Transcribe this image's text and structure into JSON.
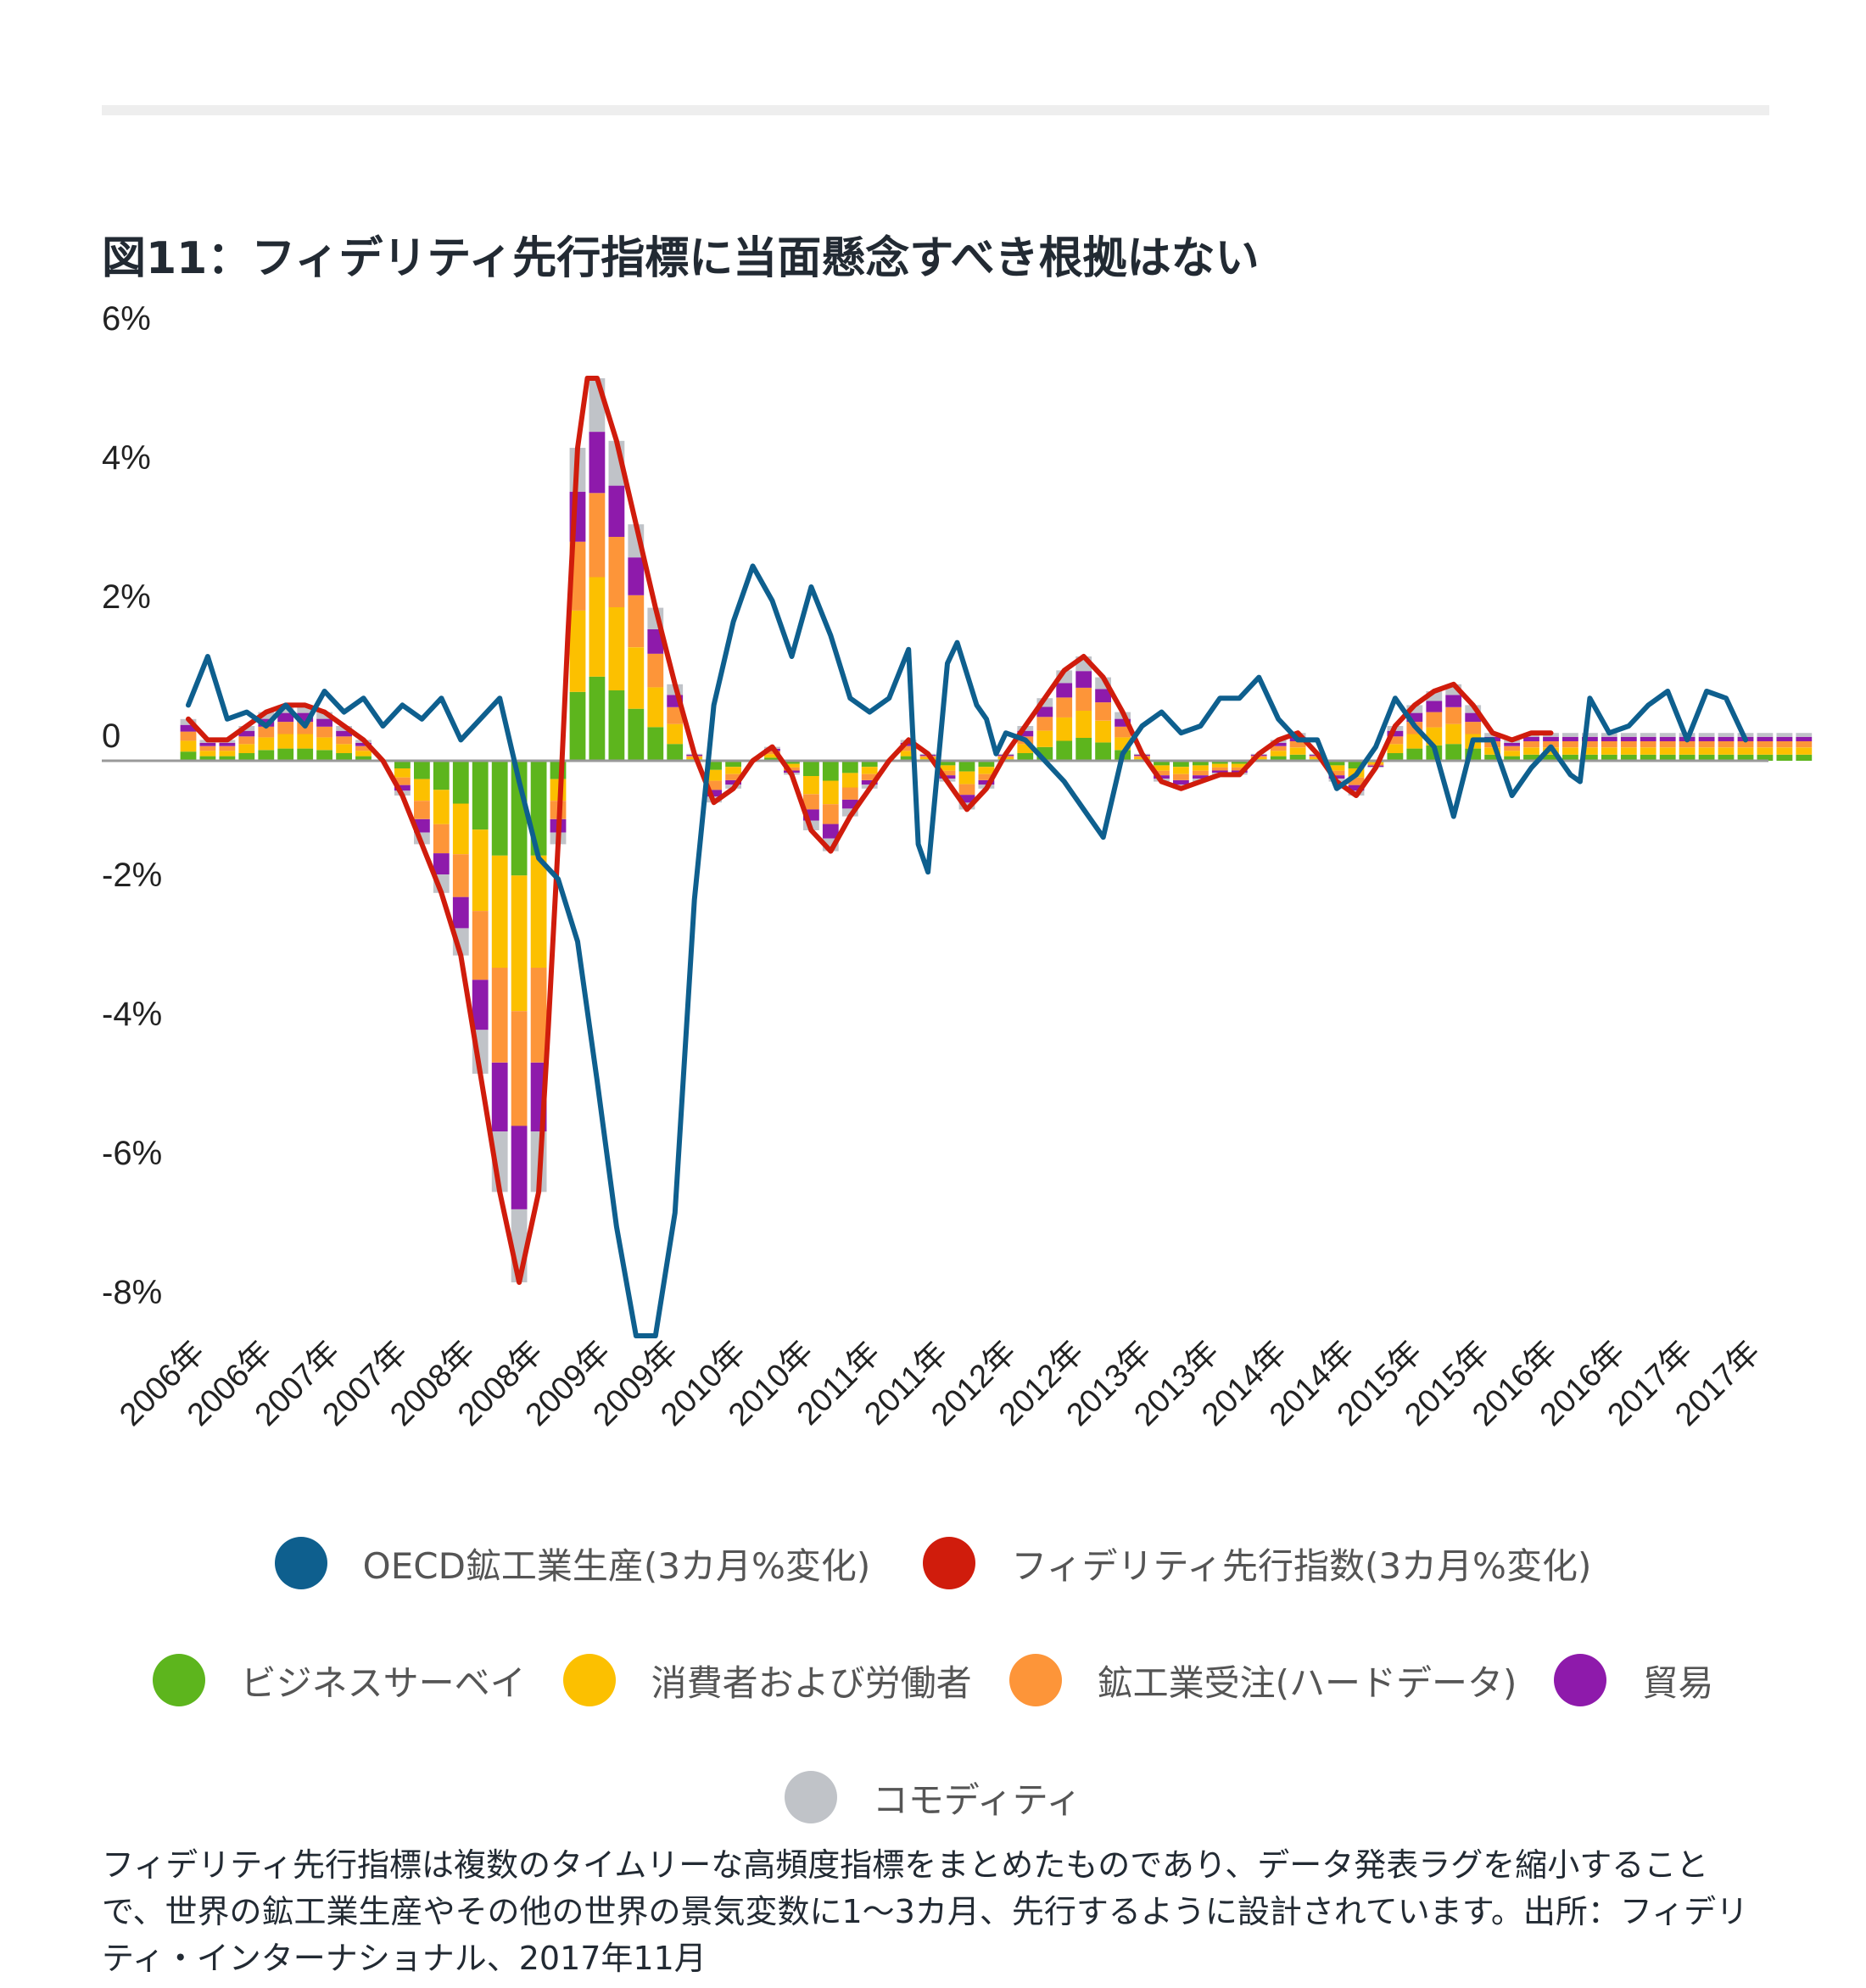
{
  "title": "図11：フィデリティ先行指標に当面懸念すべき根拠はない",
  "caption": "フィデリティ先行指標は複数のタイムリーな高頻度指標をまとめたものであり、データ発表ラグを縮小することで、世界の鉱工業生産やその他の世界の景気変数に1〜3カ月、先行するように設計されています。出所：フィデリティ・インターナショナル、2017年11月",
  "chart_data": {
    "type": "bar",
    "stacked": true,
    "title": "図11：フィデリティ先行指標に当面懸念すべき根拠はない",
    "y_ticks": [
      "6%",
      "4%",
      "2%",
      "0",
      "-2%",
      "-4%",
      "-6%",
      "-8%"
    ],
    "y_tick_values": [
      6,
      4,
      2,
      0,
      -2,
      -4,
      -6,
      -8
    ],
    "ylim": [
      -8.8,
      6.2
    ],
    "x_start": "2006-01",
    "x_end": "2017-10",
    "x_tick_labels": [
      "2006年",
      "2006年",
      "2007年",
      "2007年",
      "2008年",
      "2008年",
      "2009年",
      "2009年",
      "2010年",
      "2010年",
      "2011年",
      "2011年",
      "2012年",
      "2012年",
      "2013年",
      "2013年",
      "2014年",
      "2014年",
      "2015年",
      "2015年",
      "2016年",
      "2016年",
      "2017年",
      "2017年"
    ],
    "grid": false,
    "series": [
      {
        "name": "OECD鉱工業生産(3カ月%変化)",
        "type": "line",
        "color": "#0e5f8e",
        "points": [
          [
            0,
            0.8
          ],
          [
            4,
            1.5
          ],
          [
            8,
            0.6
          ],
          [
            12,
            0.7
          ],
          [
            16,
            0.5
          ],
          [
            20,
            0.8
          ],
          [
            24,
            0.5
          ],
          [
            28,
            1.0
          ],
          [
            32,
            0.7
          ],
          [
            36,
            0.9
          ],
          [
            40,
            0.5
          ],
          [
            44,
            0.8
          ],
          [
            48,
            0.6
          ],
          [
            52,
            0.9
          ],
          [
            56,
            0.3
          ],
          [
            60,
            0.6
          ],
          [
            64,
            0.9
          ],
          [
            68,
            -0.3
          ],
          [
            72,
            -1.4
          ],
          [
            76,
            -1.7
          ],
          [
            80,
            -2.6
          ],
          [
            84,
            -4.6
          ],
          [
            88,
            -6.7
          ],
          [
            92,
            -8.7
          ],
          [
            96,
            -8.9
          ],
          [
            100,
            -6.5
          ],
          [
            104,
            -2.0
          ],
          [
            108,
            0.8
          ],
          [
            112,
            2.0
          ],
          [
            116,
            2.8
          ],
          [
            120,
            2.3
          ],
          [
            124,
            1.5
          ],
          [
            128,
            2.5
          ],
          [
            132,
            1.8
          ],
          [
            136,
            0.9
          ],
          [
            140,
            0.7
          ],
          [
            144,
            0.9
          ],
          [
            148,
            1.6
          ],
          [
            150,
            -1.2
          ],
          [
            152,
            -1.6
          ],
          [
            156,
            1.4
          ],
          [
            158,
            1.7
          ],
          [
            162,
            0.8
          ],
          [
            164,
            0.6
          ],
          [
            166,
            0.1
          ],
          [
            168,
            0.4
          ],
          [
            172,
            0.3
          ],
          [
            176,
            0.0
          ],
          [
            180,
            -0.3
          ],
          [
            184,
            -0.7
          ],
          [
            188,
            -1.1
          ],
          [
            192,
            0.1
          ],
          [
            196,
            0.5
          ],
          [
            200,
            0.7
          ],
          [
            204,
            0.4
          ],
          [
            208,
            0.5
          ],
          [
            212,
            0.9
          ],
          [
            216,
            0.9
          ],
          [
            220,
            1.2
          ],
          [
            224,
            0.6
          ],
          [
            228,
            0.3
          ],
          [
            232,
            0.3
          ],
          [
            236,
            -0.4
          ],
          [
            240,
            -0.2
          ],
          [
            244,
            0.2
          ],
          [
            248,
            0.9
          ],
          [
            252,
            0.5
          ],
          [
            256,
            0.2
          ],
          [
            260,
            -0.8
          ],
          [
            264,
            0.3
          ],
          [
            268,
            0.3
          ],
          [
            272,
            -0.5
          ],
          [
            276,
            -0.1
          ],
          [
            280,
            0.2
          ],
          [
            284,
            -0.2
          ],
          [
            286,
            -0.3
          ],
          [
            288,
            0.9
          ],
          [
            292,
            0.4
          ],
          [
            296,
            0.5
          ],
          [
            300,
            0.8
          ],
          [
            304,
            1.0
          ],
          [
            308,
            0.3
          ],
          [
            312,
            1.0
          ],
          [
            316,
            0.9
          ],
          [
            320,
            0.3
          ]
        ]
      },
      {
        "name": "フィデリティ先行指数(3カ月%変化)",
        "type": "line",
        "color": "#d01c0c",
        "points": [
          [
            0,
            0.6
          ],
          [
            4,
            0.3
          ],
          [
            8,
            0.3
          ],
          [
            12,
            0.5
          ],
          [
            16,
            0.7
          ],
          [
            20,
            0.8
          ],
          [
            24,
            0.8
          ],
          [
            28,
            0.7
          ],
          [
            32,
            0.5
          ],
          [
            36,
            0.3
          ],
          [
            40,
            0.0
          ],
          [
            44,
            -0.5
          ],
          [
            48,
            -1.2
          ],
          [
            52,
            -1.9
          ],
          [
            56,
            -2.8
          ],
          [
            60,
            -4.5
          ],
          [
            64,
            -6.2
          ],
          [
            68,
            -7.5
          ],
          [
            72,
            -6.2
          ],
          [
            74,
            -3.8
          ],
          [
            76,
            -1.2
          ],
          [
            78,
            1.8
          ],
          [
            80,
            4.5
          ],
          [
            82,
            5.5
          ],
          [
            84,
            5.5
          ],
          [
            88,
            4.6
          ],
          [
            92,
            3.4
          ],
          [
            96,
            2.2
          ],
          [
            100,
            1.1
          ],
          [
            104,
            0.1
          ],
          [
            108,
            -0.6
          ],
          [
            112,
            -0.4
          ],
          [
            116,
            0.0
          ],
          [
            120,
            0.2
          ],
          [
            124,
            -0.2
          ],
          [
            128,
            -1.0
          ],
          [
            132,
            -1.3
          ],
          [
            136,
            -0.8
          ],
          [
            140,
            -0.4
          ],
          [
            144,
            0.0
          ],
          [
            148,
            0.3
          ],
          [
            152,
            0.1
          ],
          [
            156,
            -0.3
          ],
          [
            160,
            -0.7
          ],
          [
            164,
            -0.4
          ],
          [
            168,
            0.1
          ],
          [
            172,
            0.5
          ],
          [
            176,
            0.9
          ],
          [
            180,
            1.3
          ],
          [
            184,
            1.5
          ],
          [
            188,
            1.2
          ],
          [
            192,
            0.7
          ],
          [
            196,
            0.1
          ],
          [
            200,
            -0.3
          ],
          [
            204,
            -0.4
          ],
          [
            208,
            -0.3
          ],
          [
            212,
            -0.2
          ],
          [
            216,
            -0.2
          ],
          [
            220,
            0.1
          ],
          [
            224,
            0.3
          ],
          [
            228,
            0.4
          ],
          [
            232,
            0.1
          ],
          [
            236,
            -0.3
          ],
          [
            240,
            -0.5
          ],
          [
            244,
            -0.1
          ],
          [
            248,
            0.5
          ],
          [
            252,
            0.8
          ],
          [
            256,
            1.0
          ],
          [
            260,
            1.1
          ],
          [
            264,
            0.8
          ],
          [
            268,
            0.4
          ],
          [
            272,
            0.3
          ],
          [
            276,
            0.4
          ],
          [
            280,
            0.4
          ]
        ]
      },
      {
        "name": "ビジネスサーベイ",
        "type": "bar",
        "color": "#5db51d"
      },
      {
        "name": "消費者および労働者",
        "type": "bar",
        "color": "#fcc000"
      },
      {
        "name": "鉱工業受注(ハードデータ)",
        "type": "bar",
        "color": "#fd9539"
      },
      {
        "name": "貿易",
        "type": "bar",
        "color": "#8e1aab"
      },
      {
        "name": "コモディティ",
        "type": "bar",
        "color": "#c0c3c8"
      }
    ],
    "stack_weights": {
      "ビジネスサーベイ": 0.22,
      "消費者および労働者": 0.26,
      "鉱工業受注(ハードデータ)": 0.22,
      "貿易": 0.16,
      "コモディティ": 0.14
    }
  },
  "legend": {
    "row1": [
      {
        "label": "OECD鉱工業生産(3カ月%変化)",
        "color": "#0e5f8e"
      },
      {
        "label": "フィデリティ先行指数(3カ月%変化)",
        "color": "#d01c0c"
      }
    ],
    "row2": [
      {
        "label": "ビジネスサーベイ",
        "color": "#5db51d"
      },
      {
        "label": "消費者および労働者",
        "color": "#fcc000"
      },
      {
        "label": "鉱工業受注(ハードデータ)",
        "color": "#fd9539"
      },
      {
        "label": "貿易",
        "color": "#8e1aab"
      }
    ],
    "row3": [
      {
        "label": "コモディティ",
        "color": "#c0c3c8"
      }
    ]
  }
}
